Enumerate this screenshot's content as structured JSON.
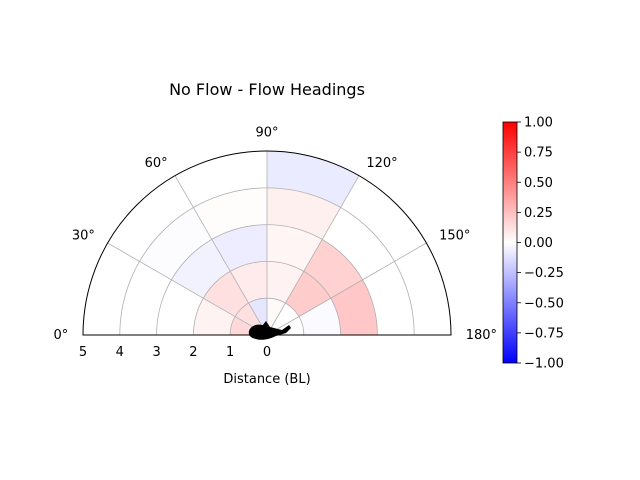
{
  "chart_data": {
    "type": "heatmap",
    "projection": "polar-half",
    "title": "No Flow - Flow Headings",
    "xlabel": "Distance (BL)",
    "angle_unit": "degrees",
    "theta_ticks": [
      0,
      30,
      60,
      90,
      120,
      150,
      180
    ],
    "theta_tick_labels": [
      "0°",
      "30°",
      "60°",
      "90°",
      "120°",
      "150°",
      "180°"
    ],
    "r_range": [
      0,
      5
    ],
    "r_ticks": [
      5,
      4,
      3,
      2,
      1,
      0
    ],
    "r_tick_labels": [
      "5",
      "4",
      "3",
      "2",
      "1",
      "0"
    ],
    "grid": true,
    "colormap": "bwr",
    "colorbar": {
      "range": [
        -1.0,
        1.0
      ],
      "ticks": [
        1.0,
        0.75,
        0.5,
        0.25,
        0.0,
        -0.25,
        -0.5,
        -0.75,
        -1.0
      ],
      "tick_labels": [
        "1.00",
        "0.75",
        "0.50",
        "0.25",
        "0.00",
        "−0.25",
        "−0.50",
        "−0.75",
        "−1.00"
      ]
    },
    "theta_bins_deg": [
      [
        0,
        30
      ],
      [
        30,
        60
      ],
      [
        60,
        90
      ],
      [
        90,
        120
      ],
      [
        120,
        150
      ],
      [
        150,
        180
      ]
    ],
    "r_bins": [
      [
        0,
        1
      ],
      [
        1,
        2
      ],
      [
        2,
        3
      ],
      [
        3,
        4
      ],
      [
        4,
        5
      ]
    ],
    "cells": [
      {
        "theta": [
          0,
          30
        ],
        "r": [
          0,
          1
        ],
        "value": 0.15
      },
      {
        "theta": [
          30,
          60
        ],
        "r": [
          0,
          1
        ],
        "value": 0.12
      },
      {
        "theta": [
          60,
          90
        ],
        "r": [
          0,
          1
        ],
        "value": -0.1
      },
      {
        "theta": [
          90,
          120
        ],
        "r": [
          0,
          1
        ],
        "value": 0.02
      },
      {
        "theta": [
          120,
          150
        ],
        "r": [
          0,
          1
        ],
        "value": 0.0
      },
      {
        "theta": [
          150,
          180
        ],
        "r": [
          0,
          1
        ],
        "value": 0.0
      },
      {
        "theta": [
          0,
          30
        ],
        "r": [
          1,
          2
        ],
        "value": 0.05
      },
      {
        "theta": [
          30,
          60
        ],
        "r": [
          1,
          2
        ],
        "value": 0.12
      },
      {
        "theta": [
          60,
          90
        ],
        "r": [
          1,
          2
        ],
        "value": 0.08
      },
      {
        "theta": [
          90,
          120
        ],
        "r": [
          1,
          2
        ],
        "value": 0.05
      },
      {
        "theta": [
          120,
          150
        ],
        "r": [
          1,
          2
        ],
        "value": 0.2
      },
      {
        "theta": [
          150,
          180
        ],
        "r": [
          1,
          2
        ],
        "value": -0.02
      },
      {
        "theta": [
          0,
          30
        ],
        "r": [
          2,
          3
        ],
        "value": 0.0
      },
      {
        "theta": [
          30,
          60
        ],
        "r": [
          2,
          3
        ],
        "value": -0.05
      },
      {
        "theta": [
          60,
          90
        ],
        "r": [
          2,
          3
        ],
        "value": -0.07
      },
      {
        "theta": [
          90,
          120
        ],
        "r": [
          2,
          3
        ],
        "value": 0.04
      },
      {
        "theta": [
          120,
          150
        ],
        "r": [
          2,
          3
        ],
        "value": 0.18
      },
      {
        "theta": [
          150,
          180
        ],
        "r": [
          2,
          3
        ],
        "value": 0.22
      },
      {
        "theta": [
          0,
          30
        ],
        "r": [
          3,
          4
        ],
        "value": 0.0
      },
      {
        "theta": [
          30,
          60
        ],
        "r": [
          3,
          4
        ],
        "value": -0.01
      },
      {
        "theta": [
          60,
          90
        ],
        "r": [
          3,
          4
        ],
        "value": 0.01
      },
      {
        "theta": [
          90,
          120
        ],
        "r": [
          3,
          4
        ],
        "value": 0.06
      },
      {
        "theta": [
          120,
          150
        ],
        "r": [
          3,
          4
        ],
        "value": 0.0
      },
      {
        "theta": [
          150,
          180
        ],
        "r": [
          3,
          4
        ],
        "value": 0.0
      },
      {
        "theta": [
          0,
          30
        ],
        "r": [
          4,
          5
        ],
        "value": 0.0
      },
      {
        "theta": [
          30,
          60
        ],
        "r": [
          4,
          5
        ],
        "value": 0.0
      },
      {
        "theta": [
          60,
          90
        ],
        "r": [
          4,
          5
        ],
        "value": 0.0
      },
      {
        "theta": [
          90,
          120
        ],
        "r": [
          4,
          5
        ],
        "value": -0.08
      },
      {
        "theta": [
          120,
          150
        ],
        "r": [
          4,
          5
        ],
        "value": 0.0
      },
      {
        "theta": [
          150,
          180
        ],
        "r": [
          4,
          5
        ],
        "value": 0.0
      }
    ]
  }
}
